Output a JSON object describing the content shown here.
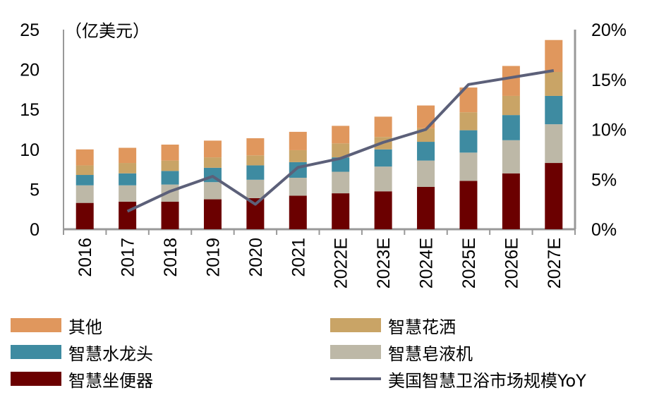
{
  "chart_data": {
    "type": "bar",
    "stacked": true,
    "unit_label": "（亿美元）",
    "categories": [
      "2016",
      "2017",
      "2018",
      "2019",
      "2020",
      "2021",
      "2022E",
      "2023E",
      "2024E",
      "2025E",
      "2026E",
      "2027E"
    ],
    "y_left": {
      "min": 0,
      "max": 25,
      "ticks": [
        "0",
        "5",
        "10",
        "15",
        "20",
        "25"
      ]
    },
    "y_right": {
      "min": 0,
      "max": 20,
      "ticks": [
        "0%",
        "5%",
        "10%",
        "15%",
        "20%"
      ]
    },
    "grid": false,
    "legend_position": "bottom",
    "series": [
      {
        "name": "智慧坐便器",
        "color": "#6B0000",
        "values": [
          3.3,
          3.45,
          3.45,
          3.75,
          3.9,
          4.2,
          4.5,
          4.75,
          5.3,
          6.05,
          7.0,
          8.3
        ]
      },
      {
        "name": "智慧皂液机",
        "color": "#BDB8A7",
        "values": [
          2.2,
          2.05,
          2.15,
          2.15,
          2.3,
          2.25,
          2.7,
          3.1,
          3.3,
          3.55,
          4.15,
          4.85
        ]
      },
      {
        "name": "智慧水龙头",
        "color": "#3E8BA1",
        "values": [
          1.3,
          1.5,
          1.7,
          1.8,
          1.8,
          1.95,
          1.8,
          2.15,
          2.35,
          2.8,
          3.15,
          3.55
        ]
      },
      {
        "name": "智慧花洒",
        "color": "#C9A466",
        "values": [
          1.2,
          1.3,
          1.3,
          1.3,
          1.25,
          1.5,
          1.75,
          1.55,
          1.7,
          2.25,
          2.4,
          3.0
        ]
      },
      {
        "name": "其他",
        "color": "#E0975D",
        "values": [
          2.0,
          1.9,
          2.0,
          2.1,
          2.15,
          2.3,
          2.2,
          2.55,
          2.85,
          3.1,
          3.75,
          4.0
        ]
      }
    ],
    "line": {
      "name": "美国智慧卫浴市场规模YoY",
      "color": "#5C6079",
      "axis": "right",
      "unit": "%",
      "values": [
        null,
        1.8,
        3.8,
        5.3,
        2.5,
        6.2,
        7.1,
        8.7,
        10.0,
        14.5,
        15.2,
        15.9
      ]
    }
  }
}
